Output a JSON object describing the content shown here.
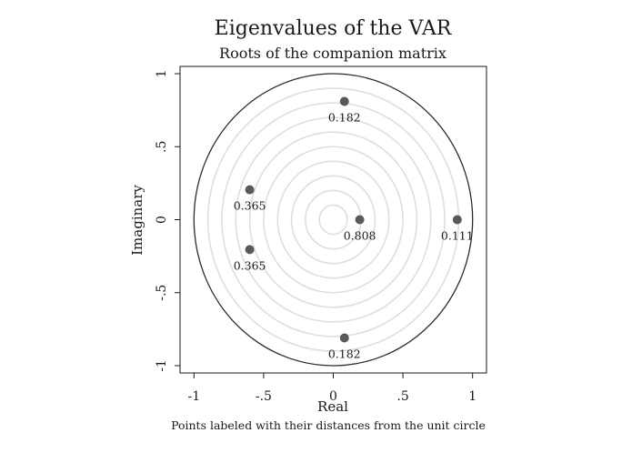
{
  "chart_data": {
    "type": "scatter",
    "title": "Eigenvalues of the VAR",
    "subtitle": "Roots of the companion matrix",
    "xlabel": "Real",
    "ylabel": "Imaginary",
    "note": "Points labeled with their distances from the unit circle",
    "xlim": [
      -1.1,
      1.1
    ],
    "ylim": [
      -1.05,
      1.05
    ],
    "x_ticks": [
      {
        "value": -1,
        "label": "-1"
      },
      {
        "value": -0.5,
        "label": "-.5"
      },
      {
        "value": 0,
        "label": "0"
      },
      {
        "value": 0.5,
        "label": ".5"
      },
      {
        "value": 1,
        "label": "1"
      }
    ],
    "y_ticks": [
      {
        "value": -1,
        "label": "-1"
      },
      {
        "value": -0.5,
        "label": "-.5"
      },
      {
        "value": 0,
        "label": "0"
      },
      {
        "value": 0.5,
        "label": ".5"
      },
      {
        "value": 1,
        "label": "1"
      }
    ],
    "unit_circle_radius": 1,
    "grid_circles": [
      0.1,
      0.2,
      0.3,
      0.4,
      0.5,
      0.6,
      0.7,
      0.8,
      0.9
    ],
    "points": [
      {
        "x": 0.08,
        "y": 0.81,
        "label": "0.182"
      },
      {
        "x": 0.08,
        "y": -0.81,
        "label": "0.182"
      },
      {
        "x": -0.6,
        "y": 0.205,
        "label": "0.365"
      },
      {
        "x": -0.6,
        "y": -0.205,
        "label": "0.365"
      },
      {
        "x": 0.19,
        "y": 0.0,
        "label": "0.808"
      },
      {
        "x": 0.89,
        "y": 0.0,
        "label": "0.111"
      }
    ],
    "colors": {
      "point": "#595959",
      "unit_circle": "#2b2b2b",
      "grid_circle": "#dedede",
      "frame": "#1a1a1a"
    }
  }
}
